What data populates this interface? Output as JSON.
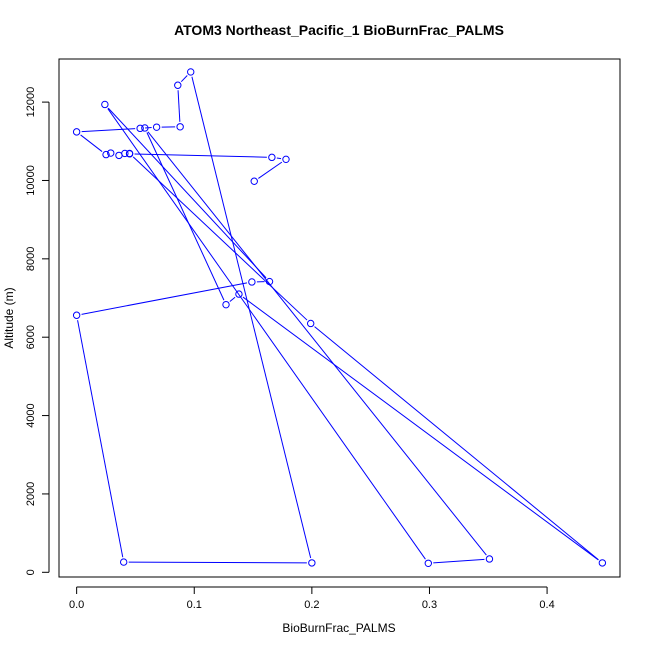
{
  "chart_data": {
    "type": "line",
    "title": "ATOM3 Northeast_Pacific_1 BioBurnFrac_PALMS",
    "xlabel": "BioBurnFrac_PALMS",
    "ylabel": "Altitude (m)",
    "xlim": [
      -0.015,
      0.462
    ],
    "ylim": [
      -120,
      13100
    ],
    "xticks": [
      0.0,
      0.1,
      0.2,
      0.3,
      0.4
    ],
    "xtick_labels": [
      "0.0",
      "0.1",
      "0.2",
      "0.3",
      "0.4"
    ],
    "yticks": [
      0,
      2000,
      4000,
      6000,
      8000,
      10000,
      12000
    ],
    "ytick_labels": [
      "0",
      "2000",
      "4000",
      "6000",
      "8000",
      "10000",
      "12000"
    ],
    "grid": false,
    "legend": "none",
    "series": [
      {
        "color": "#0000ff",
        "marker": "open-circle",
        "points": [
          {
            "x": 0.151,
            "y": 9980
          },
          {
            "x": 0.178,
            "y": 10540
          },
          {
            "x": 0.166,
            "y": 10590
          },
          {
            "x": 0.045,
            "y": 10680
          },
          {
            "x": 0.041,
            "y": 10690
          },
          {
            "x": 0.036,
            "y": 10640
          },
          {
            "x": 0.029,
            "y": 10700
          },
          {
            "x": 0.025,
            "y": 10660
          },
          {
            "x": 0.0,
            "y": 11240
          },
          {
            "x": 0.054,
            "y": 11330
          },
          {
            "x": 0.068,
            "y": 11360
          },
          {
            "x": 0.088,
            "y": 11370
          },
          {
            "x": 0.086,
            "y": 12430
          },
          {
            "x": 0.097,
            "y": 12770
          },
          {
            "x": 0.2,
            "y": 240
          },
          {
            "x": 0.04,
            "y": 260
          },
          {
            "x": 0.0,
            "y": 6560
          },
          {
            "x": 0.149,
            "y": 7410
          },
          {
            "x": 0.164,
            "y": 7420
          },
          {
            "x": 0.024,
            "y": 11940
          },
          {
            "x": 0.299,
            "y": 230
          },
          {
            "x": 0.351,
            "y": 340
          },
          {
            "x": 0.058,
            "y": 11340
          },
          {
            "x": 0.127,
            "y": 6830
          },
          {
            "x": 0.138,
            "y": 7100
          },
          {
            "x": 0.447,
            "y": 240
          },
          {
            "x": 0.199,
            "y": 6350
          },
          {
            "x": 0.045,
            "y": 10690
          }
        ]
      }
    ]
  }
}
